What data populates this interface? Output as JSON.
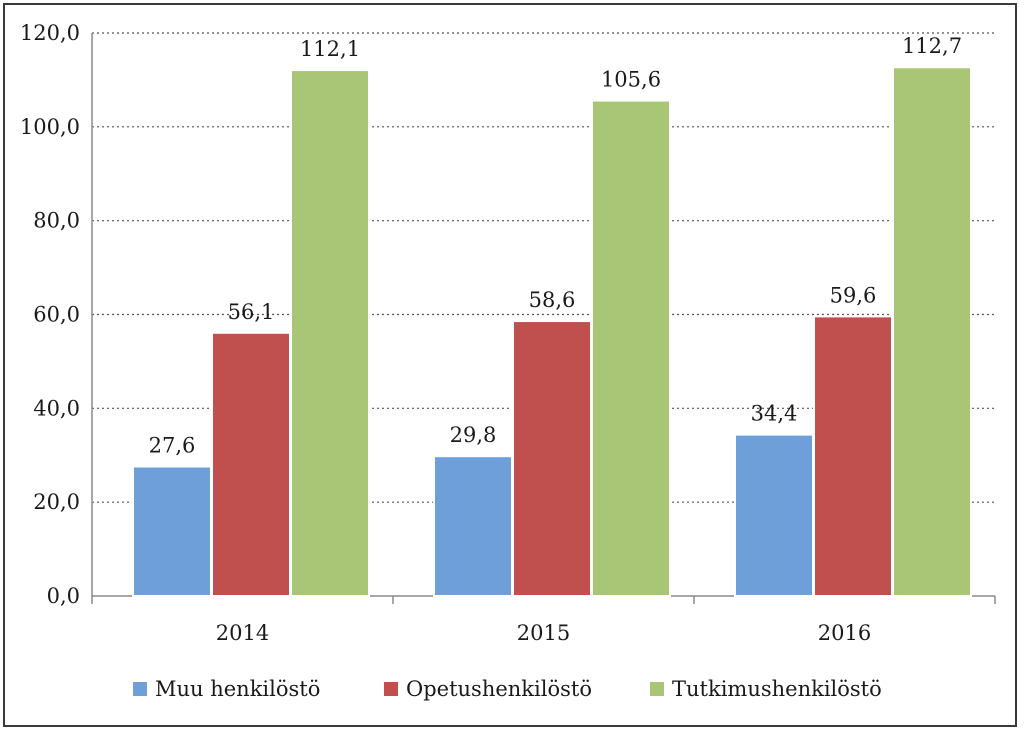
{
  "chart_data": {
    "type": "bar",
    "categories": [
      "2014",
      "2015",
      "2016"
    ],
    "series": [
      {
        "name": "Muu henkilöstö",
        "values": [
          27.6,
          29.8,
          34.4
        ],
        "color": "#6f9fd8",
        "labels": [
          "27,6",
          "29,8",
          "34,4"
        ]
      },
      {
        "name": "Opetushenkilöstö",
        "values": [
          56.1,
          58.6,
          59.6
        ],
        "color": "#c0504d",
        "labels": [
          "56,1",
          "58,6",
          "59,6"
        ]
      },
      {
        "name": "Tutkimushenkilöstö",
        "values": [
          112.1,
          105.6,
          112.7
        ],
        "color": "#a9c677",
        "labels": [
          "112,1",
          "105,6",
          "112,7"
        ]
      }
    ],
    "ylim": [
      0,
      120
    ],
    "yticks": [
      0,
      20,
      40,
      60,
      80,
      100,
      120
    ],
    "ytick_labels": [
      "0,0",
      "20,0",
      "40,0",
      "60,0",
      "80,0",
      "100,0",
      "120,0"
    ],
    "grid": true,
    "legend_position": "bottom",
    "title": "",
    "xlabel": "",
    "ylabel": ""
  }
}
